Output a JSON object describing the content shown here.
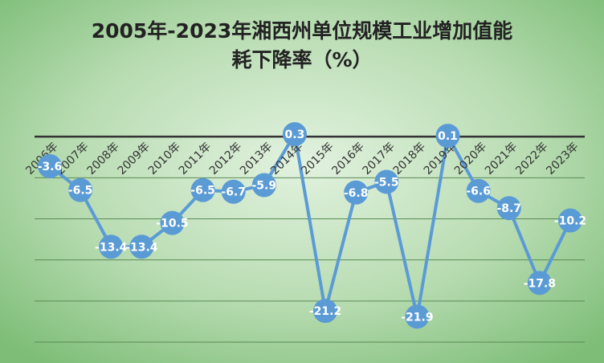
{
  "chart_data": {
    "type": "line",
    "title_lines": [
      "2005年-2023年湘西州单位规模工业增加值能",
      "耗下降率（%）"
    ],
    "categories": [
      "2006年",
      "2007年",
      "2008年",
      "2009年",
      "2010年",
      "2011年",
      "2012年",
      "2013年",
      "2014年",
      "2015年",
      "2016年",
      "2017年",
      "2018年",
      "2019年",
      "2020年",
      "2021年",
      "2022年",
      "2023年"
    ],
    "values": [
      -3.6,
      -6.5,
      -13.4,
      -13.4,
      -10.5,
      -6.5,
      -6.7,
      -5.9,
      0.3,
      -21.2,
      -6.8,
      -5.5,
      -21.9,
      0.1,
      -6.6,
      -8.7,
      -17.8,
      -10.2
    ],
    "color": "#5b9bd5",
    "ylim": [
      -25,
      5
    ],
    "ygrid": [
      0,
      -5,
      -10,
      -15,
      -20,
      -25
    ]
  }
}
